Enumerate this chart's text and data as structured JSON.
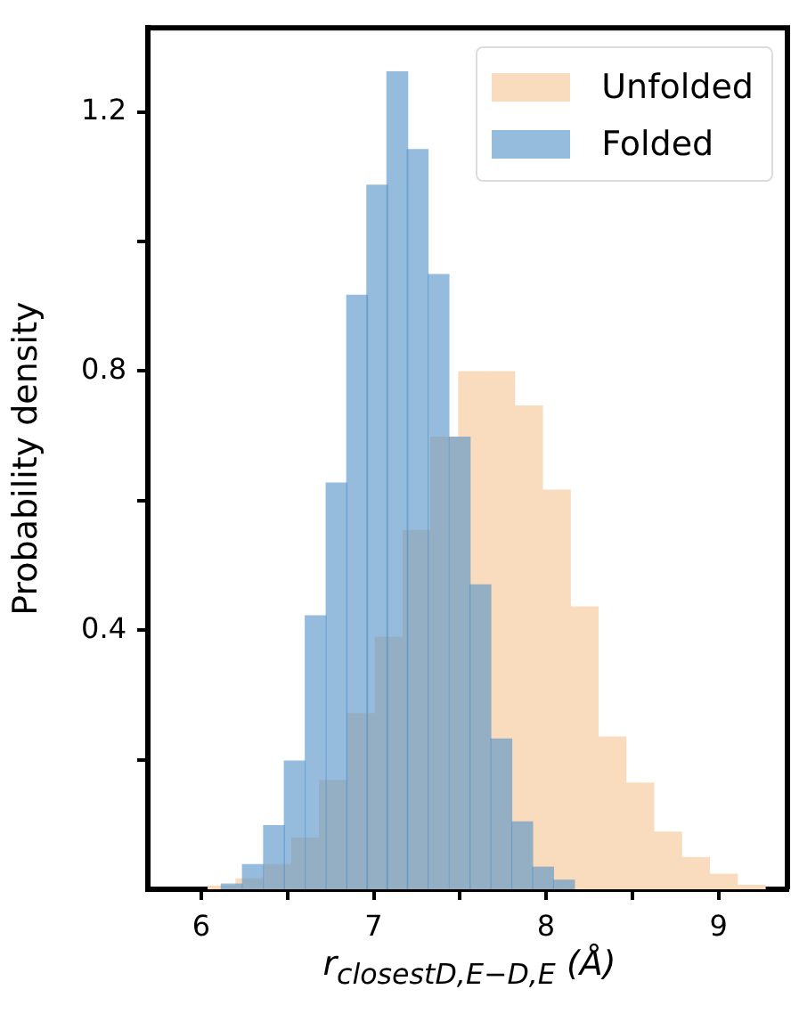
{
  "chart_data": {
    "type": "histogram",
    "xlabel": "r$_{closest}$$_{D,E−D,E}$ (Å)",
    "ylabel": "Probability density",
    "xlim": [
      5.69,
      9.4
    ],
    "xticks": [
      6,
      {
        "value": 6.5,
        "label": null
      },
      7,
      {
        "value": 7.5,
        "label": null
      },
      8,
      {
        "value": 8.5,
        "label": null
      },
      9
    ],
    "ylim": [
      0,
      1.33
    ],
    "yticks": [
      {
        "value": 0.2,
        "label": null
      },
      0.4,
      {
        "value": 0.6,
        "label": null
      },
      0.8,
      {
        "value": 1.0,
        "label": null
      },
      1.2
    ],
    "grid": false,
    "legend": "top right",
    "bins": [
      6.04,
      6.202,
      6.363,
      6.525,
      6.686,
      6.848,
      7.009,
      7.171,
      7.332,
      7.494,
      7.655,
      7.817,
      7.978,
      8.14,
      8.301,
      8.463,
      8.624,
      8.786,
      8.947,
      9.109,
      9.27
    ],
    "series": [
      {
        "name": "Unfolded",
        "color": "#f9dcbe",
        "values": [
          0.005,
          0.016,
          0.038,
          0.079,
          0.168,
          0.271,
          0.389,
          0.554,
          0.698,
          0.799,
          0.799,
          0.746,
          0.616,
          0.436,
          0.235,
          0.164,
          0.088,
          0.049,
          0.023,
          0.006
        ]
      },
      {
        "name": "Folded",
        "color": "#96bcdd",
        "bins": [
          6.116,
          6.236,
          6.362,
          6.482,
          6.602,
          6.725,
          6.844,
          6.964,
          7.077,
          7.197,
          7.313,
          7.439,
          7.559,
          7.679,
          7.802,
          7.921,
          8.044,
          8.164
        ],
        "values": [
          0.008,
          0.038,
          0.098,
          0.198,
          0.422,
          0.627,
          0.917,
          1.087,
          1.262,
          1.142,
          0.949,
          0.698,
          0.47,
          0.232,
          0.104,
          0.034,
          0.014
        ]
      }
    ]
  }
}
